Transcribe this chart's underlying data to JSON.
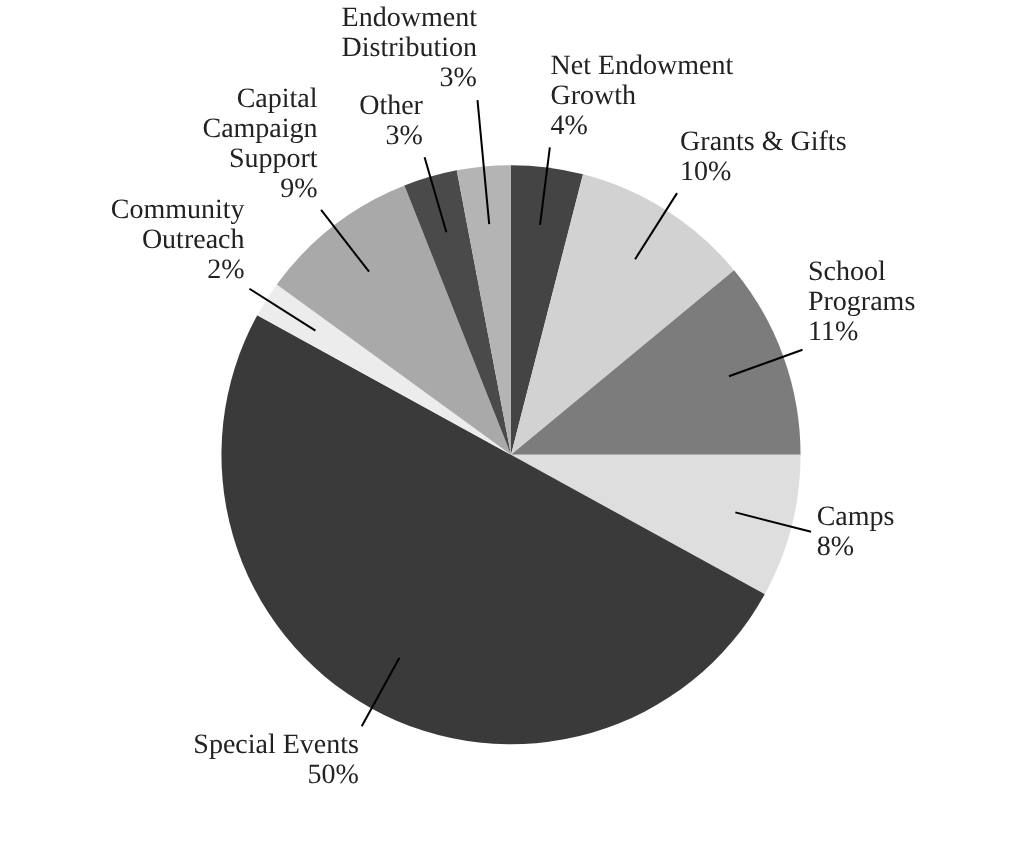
{
  "chart_data": {
    "type": "pie",
    "categories": [
      "Net Endowment Growth",
      "Grants & Gifts",
      "School Programs",
      "Camps",
      "Special Events",
      "Community Outreach",
      "Capital Campaign Support",
      "Other",
      "Endowment Distribution"
    ],
    "values": [
      4,
      10,
      11,
      8,
      50,
      2,
      9,
      3,
      3
    ],
    "value_labels": [
      "4%",
      "10%",
      "11%",
      "8%",
      "50%",
      "2%",
      "9%",
      "3%",
      "3%"
    ],
    "colors": [
      "#444444",
      "#d2d2d2",
      "#7c7c7c",
      "#dedede",
      "#3a3a3a",
      "#ececec",
      "#a9a9a9",
      "#4a4a4a",
      "#b4b4b4"
    ]
  }
}
